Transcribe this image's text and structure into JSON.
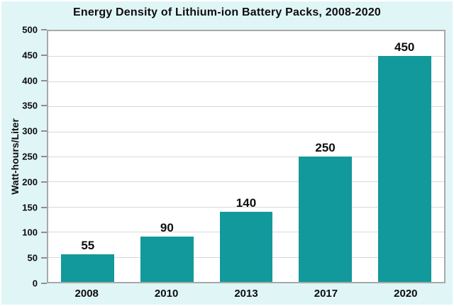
{
  "chart_data": {
    "type": "bar",
    "title": "Energy Density of Lithium-ion Battery Packs, 2008-2020",
    "categories": [
      "2008",
      "2010",
      "2013",
      "2017",
      "2020"
    ],
    "values": [
      55,
      90,
      140,
      250,
      450
    ],
    "xlabel": "",
    "ylabel": "Watt-hours/Liter",
    "ylim": [
      0,
      500
    ],
    "yticks": [
      0,
      50,
      100,
      150,
      200,
      250,
      300,
      350,
      400,
      450,
      500
    ],
    "grid": "horizontal",
    "legend_position": "none",
    "bar_color": "#12999b",
    "background_color": "#e0f5f6",
    "plot_background": "#ffffff",
    "gridline_color": "#d8d8d8",
    "axis_border_color": "#a8a8a8",
    "text_color": "#0d0d0d"
  }
}
